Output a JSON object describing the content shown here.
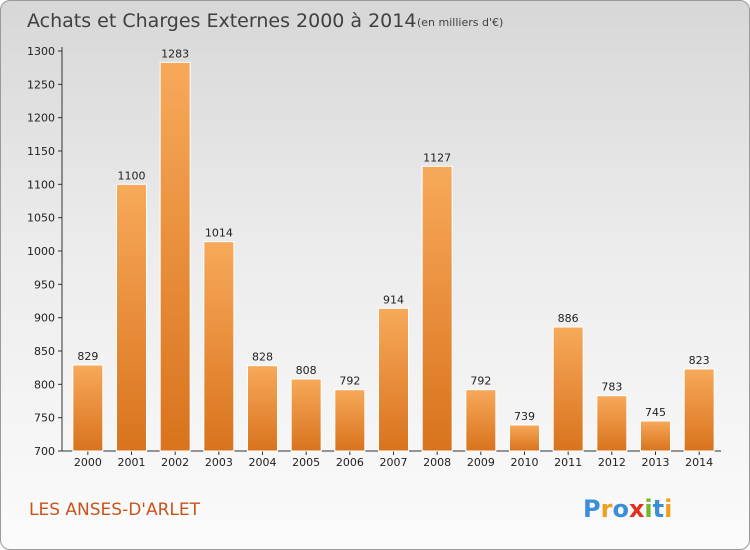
{
  "chart_data": {
    "type": "bar",
    "title": "Achats et Charges Externes 2000 à 2014",
    "subtitle": "(en milliers d'€)",
    "xlabel": "",
    "ylabel": "",
    "categories": [
      "2000",
      "2001",
      "2002",
      "2003",
      "2004",
      "2005",
      "2006",
      "2007",
      "2008",
      "2009",
      "2010",
      "2011",
      "2012",
      "2013",
      "2014"
    ],
    "values": [
      829,
      1100,
      1283,
      1014,
      828,
      808,
      792,
      914,
      1127,
      792,
      739,
      886,
      783,
      745,
      823
    ],
    "ylim": [
      700,
      1300
    ],
    "yticks": [
      700,
      750,
      800,
      850,
      900,
      950,
      1000,
      1050,
      1100,
      1150,
      1200,
      1250,
      1300
    ],
    "grid": false,
    "legend": "none",
    "bar_color": "#f09840"
  },
  "footer": {
    "city": "LES ANSES-D'ARLET",
    "logo": {
      "text": "Proxiti",
      "letters": [
        {
          "ch": "P",
          "color": "#3a8fd8"
        },
        {
          "ch": "r",
          "color": "#f0a020"
        },
        {
          "ch": "o",
          "color": "#3a8fd8"
        },
        {
          "ch": "x",
          "color": "#e03020"
        },
        {
          "ch": "i",
          "color": "#70b830"
        },
        {
          "ch": "t",
          "color": "#3a8fd8"
        },
        {
          "ch": "i",
          "color": "#f0a020"
        }
      ]
    }
  }
}
